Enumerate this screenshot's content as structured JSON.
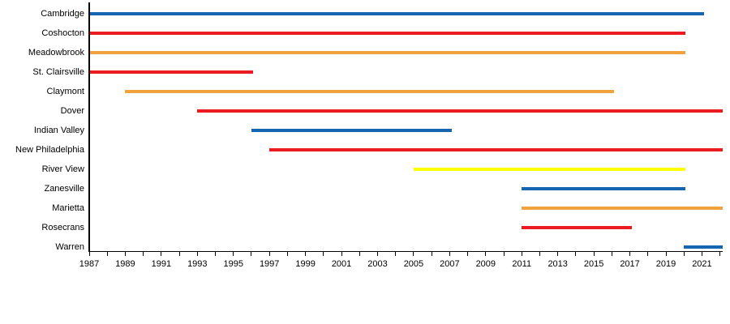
{
  "chart_data": {
    "type": "bar",
    "variant": "horizontal-timeline",
    "title": "",
    "xlabel": "",
    "ylabel": "",
    "xlim": [
      1987,
      2022.15
    ],
    "grid": false,
    "legend_position": "none",
    "tick_interval_years": 1,
    "label_interval_years": 2,
    "tick_labels": [
      "1987",
      "1989",
      "1991",
      "1993",
      "1995",
      "1997",
      "1999",
      "2001",
      "2003",
      "2005",
      "2007",
      "2009",
      "2011",
      "2013",
      "2015",
      "2017",
      "2019",
      "2021"
    ],
    "bar_end_offset_years": 0.1,
    "axis_color": "#000000",
    "background_color": "#ffffff",
    "palette": {
      "blue": "#1565b0",
      "red": "#ec1b23",
      "orange": "#f0a33c",
      "yellow": "#ffff00"
    },
    "categories": [
      "Cambridge",
      "Coshocton",
      "Meadowbrook",
      "St. Clairsville",
      "Claymont",
      "Dover",
      "Indian Valley",
      "New Philadelphia",
      "River View",
      "Zanesville",
      "Marietta",
      "Rosecrans",
      "Warren"
    ],
    "rows": [
      {
        "label": "Cambridge",
        "start": 1987,
        "end": 2021,
        "color": "blue"
      },
      {
        "label": "Coshocton",
        "start": 1987,
        "end": 2020,
        "color": "red"
      },
      {
        "label": "Meadowbrook",
        "start": 1987,
        "end": 2020,
        "color": "orange"
      },
      {
        "label": "St. Clairsville",
        "start": 1987,
        "end": 1996,
        "color": "red"
      },
      {
        "label": "Claymont",
        "start": 1989,
        "end": 2016,
        "color": "orange"
      },
      {
        "label": "Dover",
        "start": 1993,
        "end": "present",
        "color": "red"
      },
      {
        "label": "Indian Valley",
        "start": 1996,
        "end": 2007,
        "color": "blue"
      },
      {
        "label": "New Philadelphia",
        "start": 1997,
        "end": "present",
        "color": "red"
      },
      {
        "label": "River View",
        "start": 2005,
        "end": 2020,
        "color": "yellow"
      },
      {
        "label": "Zanesville",
        "start": 2011,
        "end": 2020,
        "color": "blue"
      },
      {
        "label": "Marietta",
        "start": 2011,
        "end": "present",
        "color": "orange"
      },
      {
        "label": "Rosecrans",
        "start": 2011,
        "end": 2017,
        "color": "red"
      },
      {
        "label": "Warren",
        "start": 2020,
        "end": "present",
        "color": "blue"
      }
    ]
  }
}
